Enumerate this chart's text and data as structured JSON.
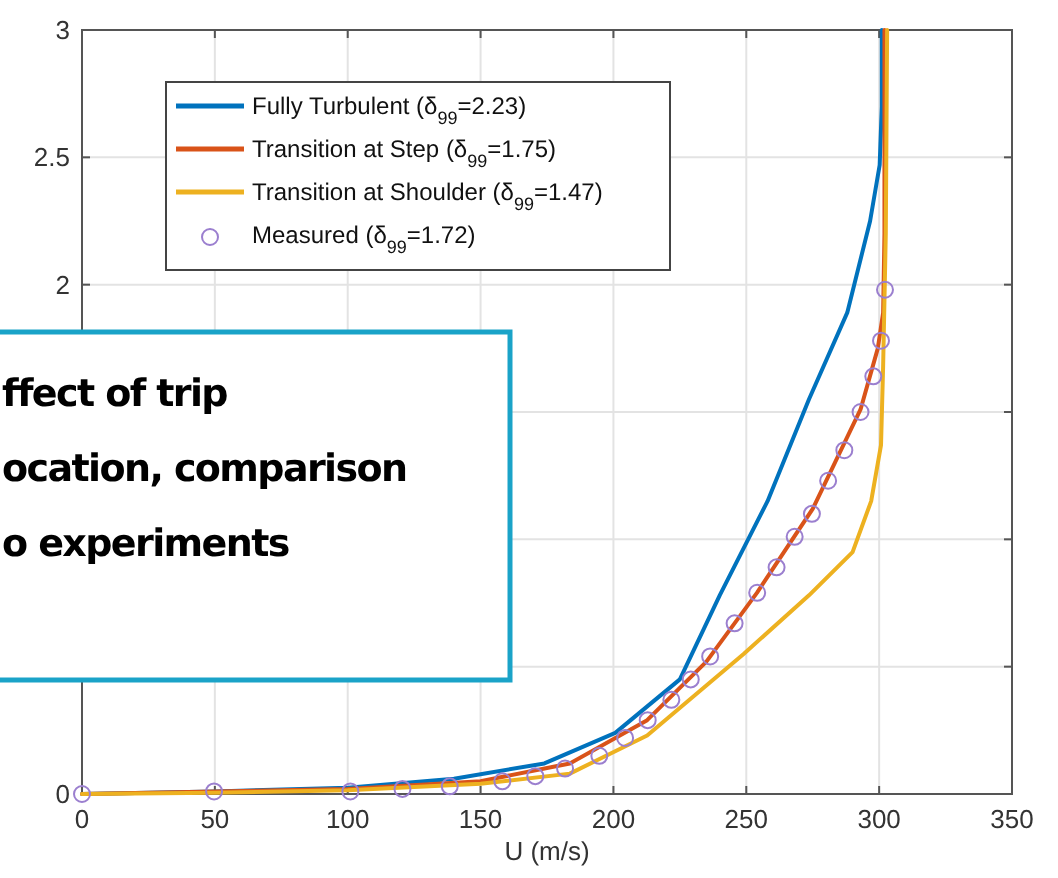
{
  "chart_data": {
    "type": "line",
    "xlabel": "U (m/s)",
    "annotations": [
      "ffect of trip\nocation, comparison\no experiments"
    ],
    "xlim": [
      0,
      350
    ],
    "xticks": [
      0,
      50,
      100,
      150,
      200,
      250,
      300,
      350
    ],
    "ylim": [
      0,
      3
    ],
    "yticks": [
      0,
      {
        "value": 0.5,
        "label": null
      },
      {
        "value": 1,
        "label": null
      },
      {
        "value": 1.5,
        "label": null
      },
      2,
      2.5,
      3
    ],
    "grid": true,
    "legend": "top left",
    "line_style": "solid",
    "series": [
      {
        "name": "Fully Turbulent (δ$_{99}$=2.23)",
        "color": "#0072bd",
        "x": [
          0,
          50,
          100,
          140,
          174,
          200.7,
          225,
          240,
          258,
          273.6,
          288,
          296.6,
          300.2,
          301,
          301
        ],
        "values": [
          0,
          0.01,
          0.025,
          0.06,
          0.12,
          0.24,
          0.45,
          0.78,
          1.15,
          1.55,
          1.89,
          2.25,
          2.47,
          2.7,
          3
        ]
      },
      {
        "name": "Transition at Step (δ$_{99}$=1.75)",
        "color": "#d95319",
        "x": [
          0,
          50,
          100,
          150,
          183.6,
          212.7,
          235,
          254,
          275,
          293,
          299.5,
          301.5,
          302,
          302
        ],
        "values": [
          0,
          0.01,
          0.02,
          0.05,
          0.12,
          0.29,
          0.52,
          0.79,
          1.12,
          1.51,
          1.75,
          1.89,
          2.2,
          3
        ]
      },
      {
        "name": "Transition at Shoulder (δ$_{99}$=1.47)",
        "color": "#edb120",
        "x": [
          0,
          50,
          100,
          150,
          183.6,
          212.7,
          249,
          273.6,
          290,
          297,
          300.7,
          301.5,
          302.5,
          303
        ],
        "values": [
          0,
          0.005,
          0.015,
          0.04,
          0.08,
          0.23,
          0.55,
          0.78,
          0.95,
          1.15,
          1.37,
          1.68,
          2.2,
          3
        ]
      },
      {
        "name": "Measured  (δ$_{99}$=1.72)",
        "type": "scatter",
        "marker": "circle",
        "color": "#9b7fcf",
        "x": [
          0,
          49.7,
          101,
          120.6,
          138.4,
          158.2,
          170.6,
          181.8,
          194.7,
          204.4,
          212.9,
          221.8,
          229.1,
          236.4,
          245.6,
          254.1,
          261.4,
          268.2,
          274.7,
          280.8,
          286.9,
          293,
          297.8,
          300.7,
          302.2
        ],
        "values": [
          0,
          0.01,
          0.01,
          0.02,
          0.03,
          0.05,
          0.07,
          0.1,
          0.15,
          0.22,
          0.29,
          0.37,
          0.45,
          0.54,
          0.67,
          0.79,
          0.89,
          1.01,
          1.1,
          1.23,
          1.35,
          1.5,
          1.64,
          1.78,
          1.98
        ]
      }
    ]
  }
}
